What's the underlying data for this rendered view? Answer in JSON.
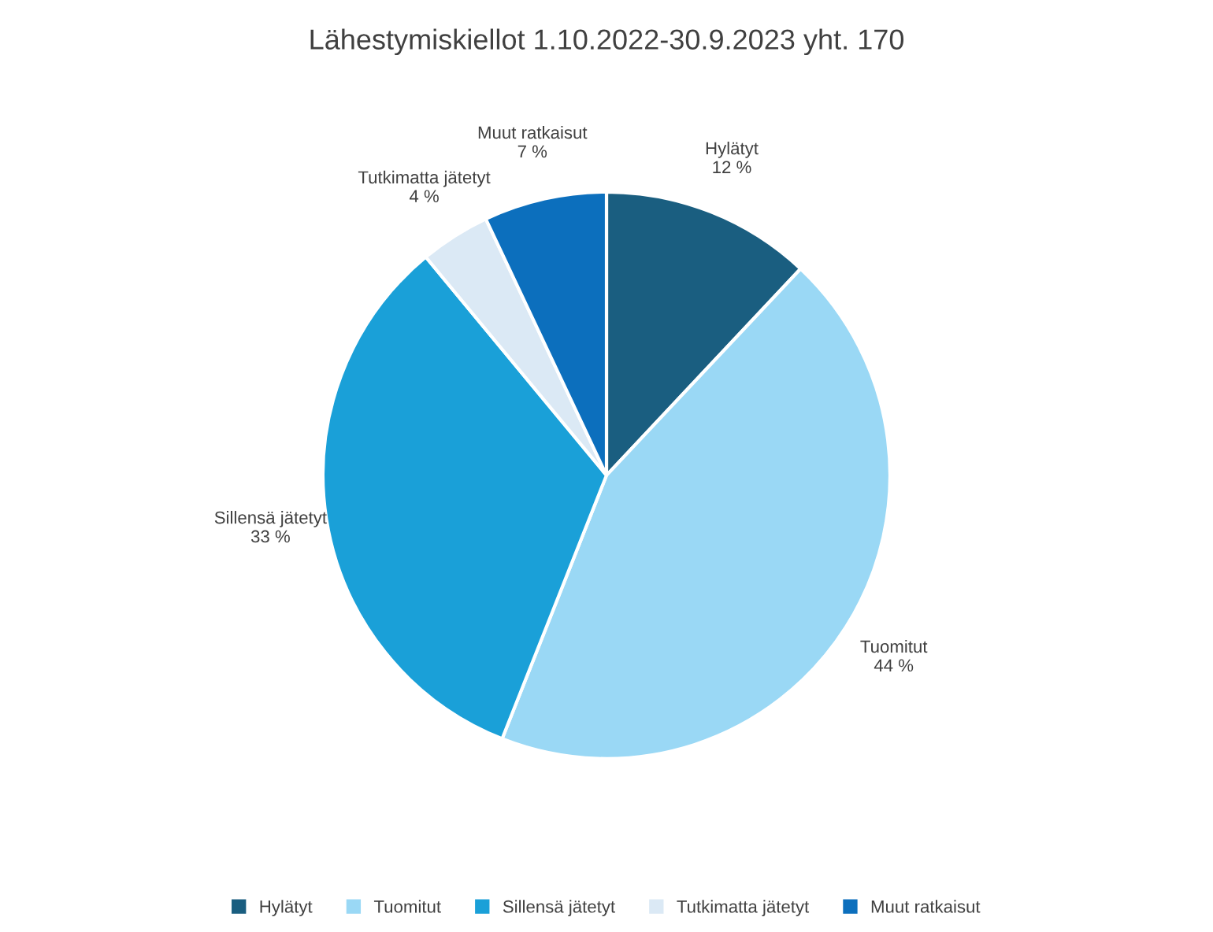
{
  "chart_data": {
    "type": "pie",
    "title": "Lähestymiskiellot 1.10.2022-30.9.2023 yht. 170",
    "categories": [
      "Hylätyt",
      "Tuomitut",
      "Sillensä jätetyt",
      "Tutkimatta jätetyt",
      "Muut ratkaisut"
    ],
    "values": [
      12,
      44,
      33,
      4,
      7
    ],
    "value_labels": [
      "12 %",
      "44 %",
      "33 %",
      "4 %",
      "7 %"
    ],
    "colors": [
      "#1a5e80",
      "#9ad8f5",
      "#1aa0d8",
      "#dbe9f5",
      "#0c6fbd"
    ],
    "legend": "bottom"
  }
}
